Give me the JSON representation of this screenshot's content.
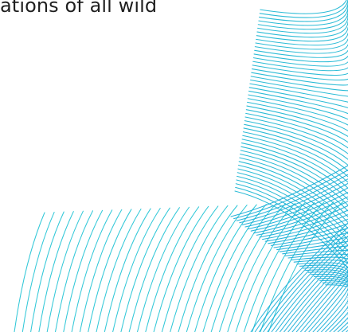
{
  "content": {
    "intro_text": "ations of all wild"
  },
  "decoration": {
    "name": "curved-line-pattern",
    "colors": {
      "left_arc_lines": "#28c5d6",
      "right_arc_lines": "#22b8d4",
      "lower_cross_lines": "#1aaed8"
    }
  }
}
